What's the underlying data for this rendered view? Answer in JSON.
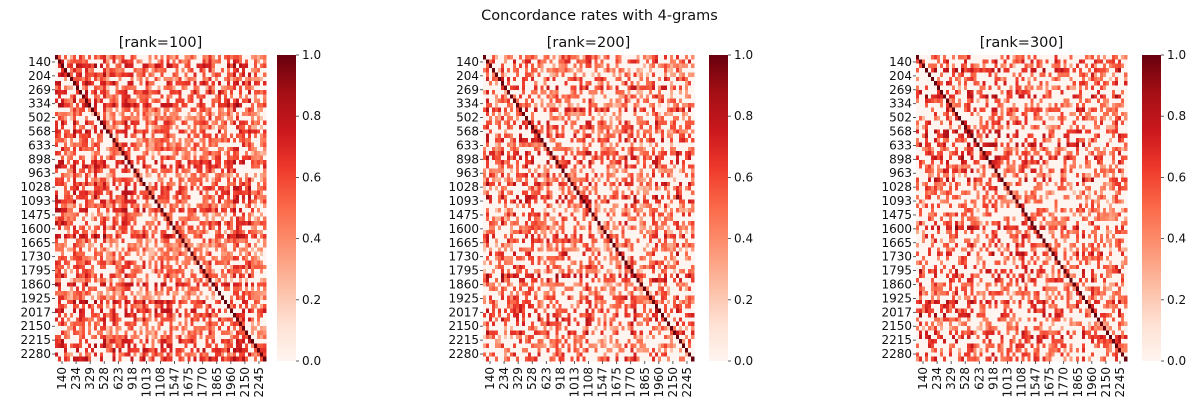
{
  "figure": {
    "suptitle": "Concordance rates with 4-grams"
  },
  "chart_data": [
    {
      "type": "heatmap",
      "title": "[rank=100]",
      "xlabel": "",
      "ylabel": "",
      "y_ticks": [
        "140",
        "204",
        "269",
        "334",
        "502",
        "568",
        "633",
        "898",
        "963",
        "1028",
        "1093",
        "1475",
        "1600",
        "1665",
        "1730",
        "1795",
        "1860",
        "1925",
        "2017",
        "2150",
        "2215",
        "2280"
      ],
      "x_ticks": [
        "140",
        "234",
        "329",
        "528",
        "623",
        "918",
        "1013",
        "1108",
        "1547",
        "1675",
        "1770",
        "1865",
        "1960",
        "2150",
        "2245"
      ],
      "value_range": [
        0.0,
        1.0
      ],
      "colormap": "Reds",
      "colorbar_ticks": [
        "0.0",
        "0.2",
        "0.4",
        "0.6",
        "0.8",
        "1.0"
      ],
      "matrix_size": 70,
      "seed": 101,
      "density": 0.62
    },
    {
      "type": "heatmap",
      "title": "[rank=200]",
      "xlabel": "",
      "ylabel": "",
      "y_ticks": [
        "140",
        "204",
        "269",
        "334",
        "502",
        "568",
        "633",
        "898",
        "963",
        "1028",
        "1093",
        "1475",
        "1600",
        "1665",
        "1730",
        "1795",
        "1860",
        "1925",
        "2017",
        "2150",
        "2215",
        "2280"
      ],
      "x_ticks": [
        "140",
        "234",
        "329",
        "528",
        "623",
        "918",
        "1013",
        "1108",
        "1547",
        "1675",
        "1770",
        "1865",
        "1960",
        "2150",
        "2245"
      ],
      "value_range": [
        0.0,
        1.0
      ],
      "colormap": "Reds",
      "colorbar_ticks": [
        "0.0",
        "0.2",
        "0.4",
        "0.6",
        "0.8",
        "1.0"
      ],
      "matrix_size": 70,
      "seed": 202,
      "density": 0.5
    },
    {
      "type": "heatmap",
      "title": "[rank=300]",
      "xlabel": "",
      "ylabel": "",
      "y_ticks": [
        "140",
        "204",
        "269",
        "334",
        "502",
        "568",
        "633",
        "898",
        "963",
        "1028",
        "1093",
        "1475",
        "1600",
        "1665",
        "1730",
        "1795",
        "1860",
        "1925",
        "2017",
        "2150",
        "2215",
        "2280"
      ],
      "x_ticks": [
        "140",
        "234",
        "329",
        "528",
        "623",
        "918",
        "1013",
        "1108",
        "1547",
        "1675",
        "1770",
        "1865",
        "1960",
        "2150",
        "2245"
      ],
      "value_range": [
        0.0,
        1.0
      ],
      "colormap": "Reds",
      "colorbar_ticks": [
        "0.0",
        "0.2",
        "0.4",
        "0.6",
        "0.8",
        "1.0"
      ],
      "matrix_size": 70,
      "seed": 303,
      "density": 0.46
    }
  ]
}
